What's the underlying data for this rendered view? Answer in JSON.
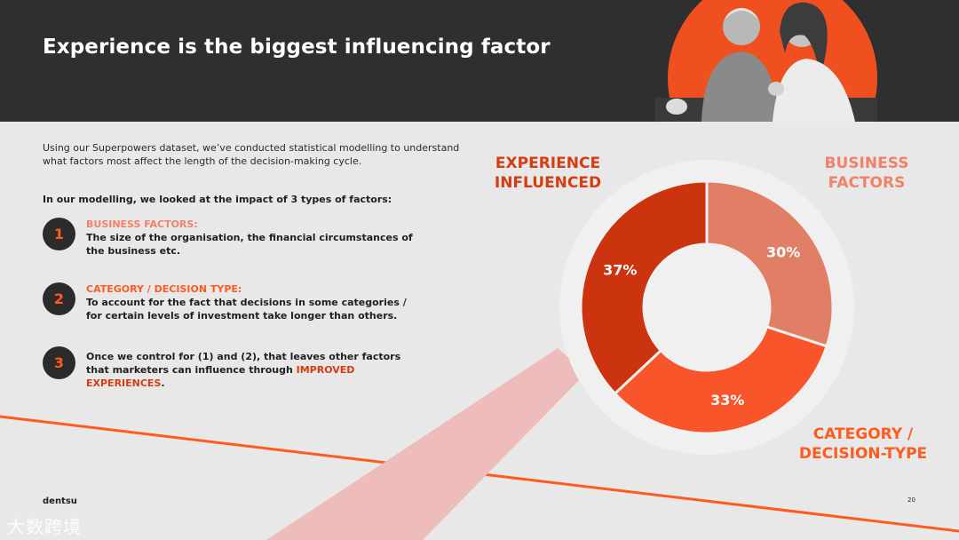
{
  "header": {
    "title": "Experience is the biggest influencing factor"
  },
  "intro": "Using our Superpowers dataset, we’ve conducted statistical modelling to understand what factors most affect the length of the decision-making cycle.",
  "lead": "In our modelling, we looked at the impact of 3 types of factors:",
  "factors": [
    {
      "number": "1",
      "heading": "BUSINESS FACTORS:",
      "text": "The size of the organisation, the financial circumstances of the business etc."
    },
    {
      "number": "2",
      "heading": "CATEGORY / DECISION TYPE:",
      "text": "To account for the fact that decisions in some categories / for certain levels of investment take longer than others."
    },
    {
      "number": "3",
      "text_before": "Once we control for (1) and (2), that leaves other factors that marketers can influence through ",
      "highlight": "IMPROVED EXPERIENCES",
      "text_after": "."
    }
  ],
  "footer": {
    "brand": "dentsu",
    "page": "20"
  },
  "watermark": "大数跨境",
  "colors": {
    "business": "#e07e66",
    "category": "#f9552a",
    "experience": "#cc330f",
    "accent": "#ff5a1f",
    "header_bg": "#2f2f2f",
    "page_bg": "#e8e8e8"
  },
  "chart_data": {
    "type": "pie",
    "donut": true,
    "categories": [
      "BUSINESS FACTORS",
      "CATEGORY / DECISION-TYPE",
      "EXPERIENCE INFLUENCED"
    ],
    "values": [
      30,
      33,
      37
    ],
    "data_labels": [
      "30%",
      "33%",
      "37%"
    ],
    "label_lines": [
      [
        "BUSINESS",
        "FACTORS"
      ],
      [
        "CATEGORY /",
        "DECISION-TYPE"
      ],
      [
        "EXPERIENCE",
        "INFLUENCED"
      ]
    ],
    "colors": [
      "#e07e66",
      "#f9552a",
      "#cc330f"
    ],
    "label_colors": [
      "#f08269",
      "#ff5a1f",
      "#d63c0f"
    ],
    "start_angle_deg": 0,
    "direction": "clockwise"
  }
}
